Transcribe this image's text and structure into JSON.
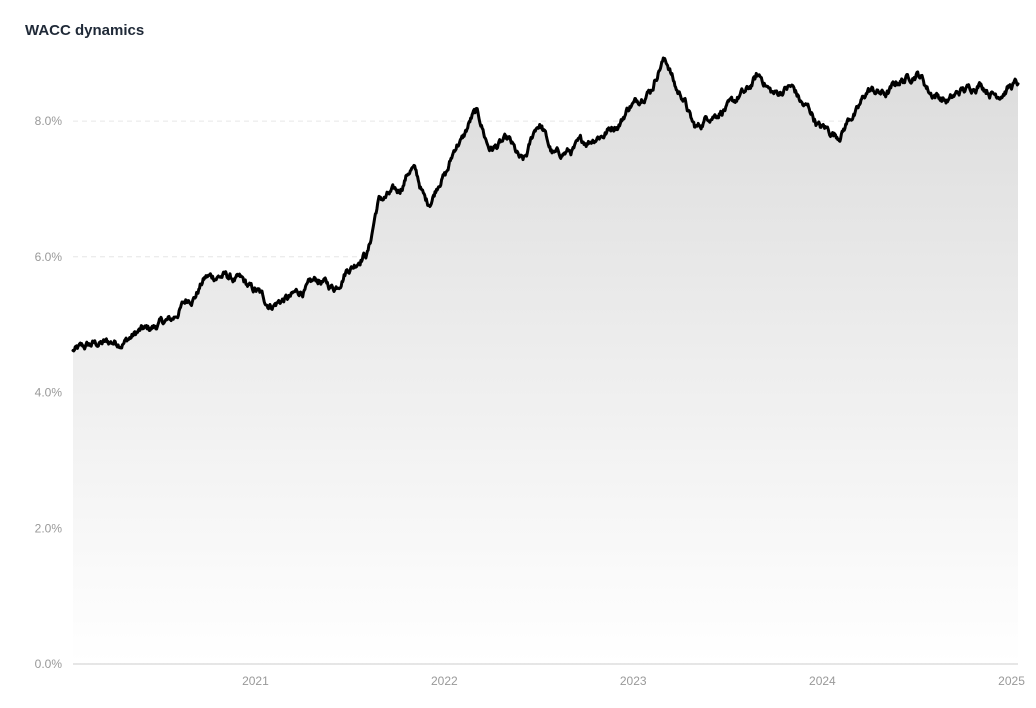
{
  "chart_data": {
    "type": "area",
    "title": "WACC dynamics",
    "xlabel": "",
    "ylabel": "",
    "x_range": [
      "2020-07-15",
      "2025-07-15"
    ],
    "ylim": [
      0,
      8.9
    ],
    "y_ticks": [
      0,
      2,
      4,
      6,
      8
    ],
    "y_tick_labels": [
      "0.0%",
      "2.0%",
      "4.0%",
      "6.0%",
      "8.0%"
    ],
    "x_ticks": [
      "2021-01-01",
      "2022-01-01",
      "2023-01-01",
      "2024-01-01",
      "2025-01-01"
    ],
    "x_tick_labels": [
      "2021",
      "2022",
      "2023",
      "2024",
      "2025"
    ],
    "grid": true,
    "legend": "none",
    "colors": {
      "line": "#000000",
      "fill_top": "#dcdcdc",
      "fill_bottom": "#ffffff"
    },
    "series": [
      {
        "x": [
          "2020-07-15",
          "2020-09-01",
          "2020-10-15",
          "2020-12-01",
          "2021-01-15",
          "2021-03-01",
          "2021-04-01",
          "2021-05-01",
          "2021-06-01",
          "2021-07-01",
          "2021-08-01",
          "2021-09-01",
          "2021-10-01",
          "2021-11-01",
          "2021-12-01",
          "2022-01-01",
          "2022-02-01",
          "2022-03-01",
          "2022-04-01",
          "2022-05-01",
          "2022-06-01",
          "2022-07-01",
          "2022-08-01",
          "2022-09-01",
          "2022-10-01",
          "2022-11-01",
          "2022-12-01",
          "2023-01-01",
          "2023-02-01",
          "2023-03-01",
          "2023-04-01",
          "2023-05-01",
          "2023-06-01",
          "2023-07-01",
          "2023-08-01",
          "2023-09-01",
          "2023-10-01",
          "2023-11-01",
          "2023-12-01",
          "2024-01-01",
          "2024-02-01",
          "2024-03-01",
          "2024-04-01",
          "2024-05-01",
          "2024-06-01",
          "2024-07-01",
          "2024-08-01",
          "2024-09-01",
          "2024-10-01",
          "2024-11-01",
          "2024-12-01",
          "2025-01-01",
          "2025-02-01",
          "2025-03-01",
          "2025-04-01",
          "2025-05-01",
          "2025-06-01",
          "2025-07-15"
        ],
        "values": [
          4.62,
          4.72,
          4.75,
          4.92,
          5.05,
          5.4,
          5.7,
          5.72,
          5.65,
          5.5,
          5.3,
          5.38,
          5.5,
          5.65,
          5.55,
          5.85,
          6.05,
          6.85,
          6.95,
          7.3,
          6.8,
          7.2,
          7.7,
          8.1,
          7.6,
          7.7,
          7.4,
          7.95,
          7.5,
          7.55,
          7.7,
          7.8,
          7.95,
          8.25,
          8.45,
          8.9,
          8.4,
          7.9,
          8.1,
          8.2,
          8.4,
          8.65,
          8.4,
          8.5,
          8.2,
          7.9,
          7.8,
          8.1,
          8.45,
          8.4,
          8.6,
          8.7,
          8.4,
          8.3,
          8.45,
          8.55,
          8.4,
          8.55
        ]
      }
    ]
  }
}
